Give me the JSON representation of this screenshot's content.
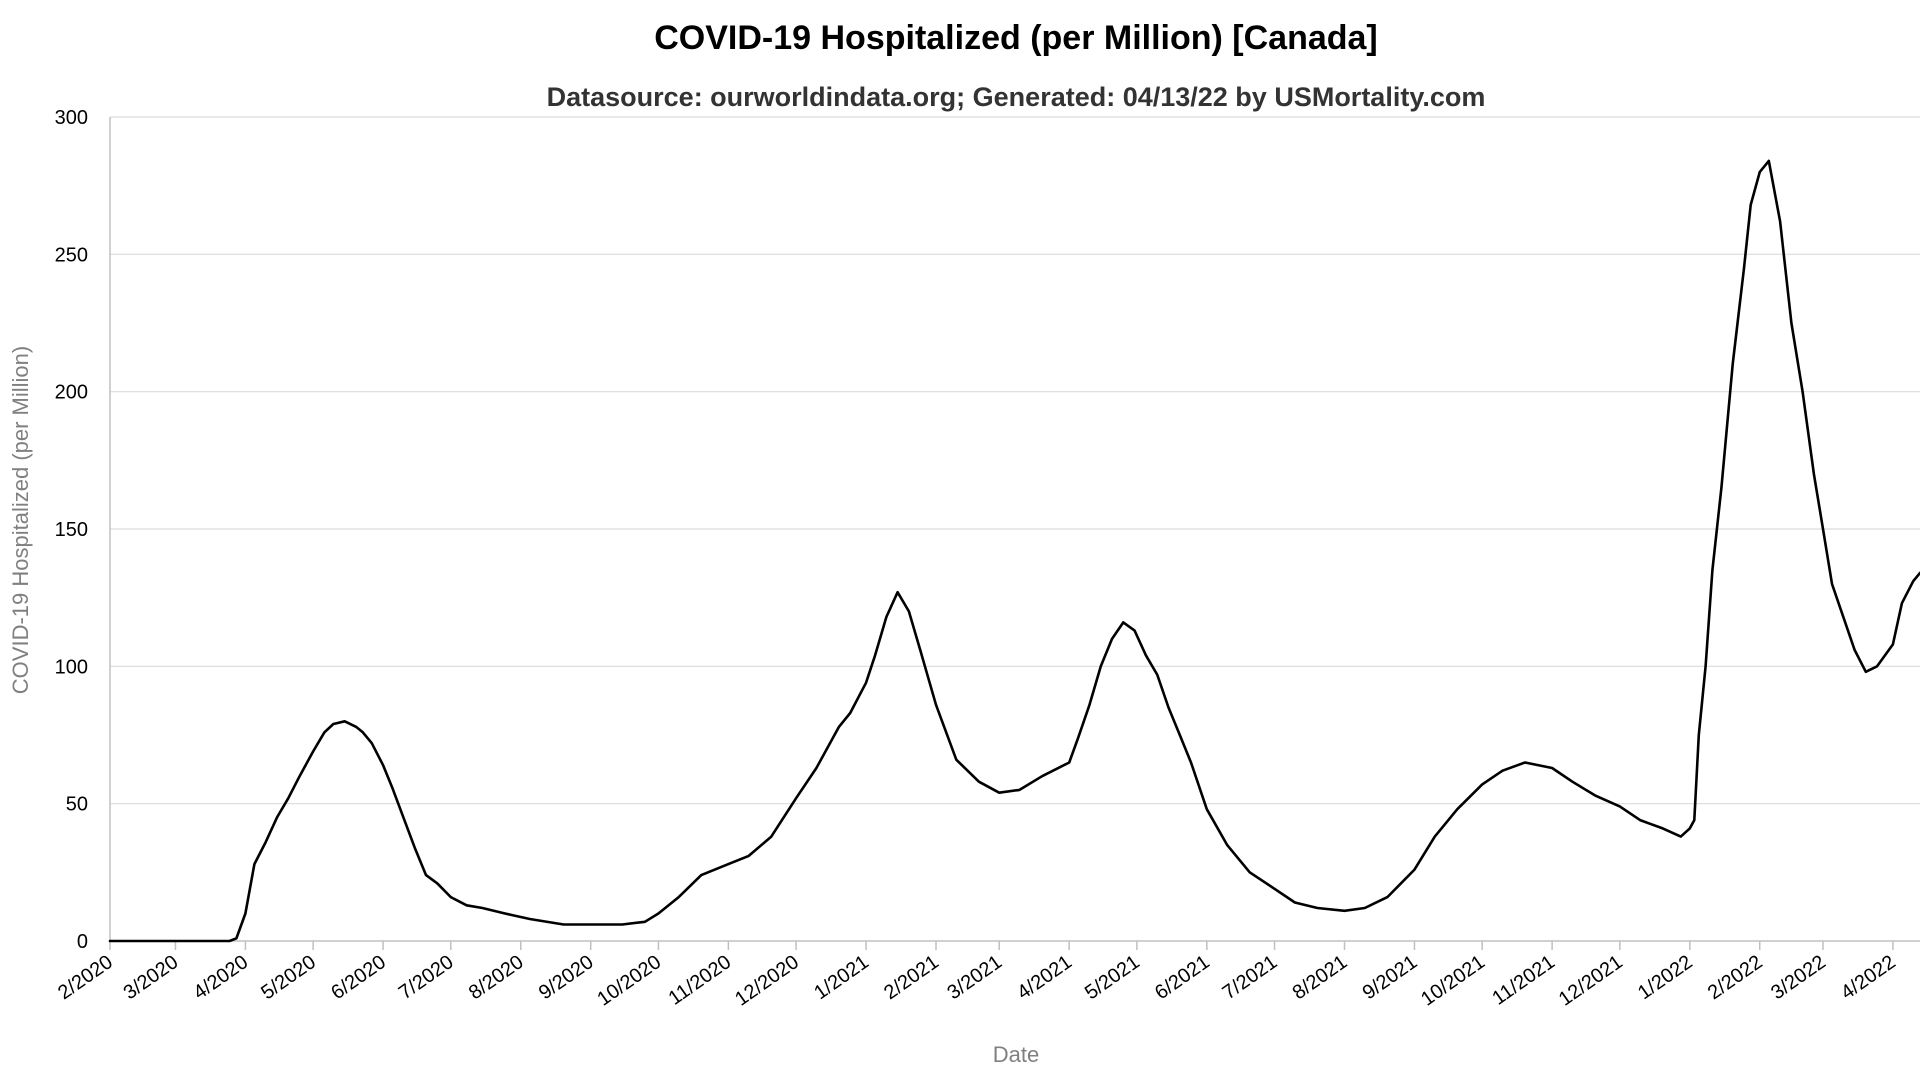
{
  "chart_data": {
    "type": "line",
    "title": "COVID-19 Hospitalized (per Million) [Canada]",
    "subtitle": "Datasource: ourworldindata.org; Generated: 04/13/22 by USMortality.com",
    "xlabel": "Date",
    "ylabel": "COVID-19 Hospitalized (per Million)",
    "ylim": [
      0,
      300
    ],
    "xlim": [
      "2020-02-01",
      "2022-04-13"
    ],
    "y_ticks": [
      0,
      50,
      100,
      150,
      200,
      250,
      300
    ],
    "x_ticks": [
      {
        "date": "2020-02-01",
        "label": "2/2020"
      },
      {
        "date": "2020-03-01",
        "label": "3/2020"
      },
      {
        "date": "2020-04-01",
        "label": "4/2020"
      },
      {
        "date": "2020-05-01",
        "label": "5/2020"
      },
      {
        "date": "2020-06-01",
        "label": "6/2020"
      },
      {
        "date": "2020-07-01",
        "label": "7/2020"
      },
      {
        "date": "2020-08-01",
        "label": "8/2020"
      },
      {
        "date": "2020-09-01",
        "label": "9/2020"
      },
      {
        "date": "2020-10-01",
        "label": "10/2020"
      },
      {
        "date": "2020-11-01",
        "label": "11/2020"
      },
      {
        "date": "2020-12-01",
        "label": "12/2020"
      },
      {
        "date": "2021-01-01",
        "label": "1/2021"
      },
      {
        "date": "2021-02-01",
        "label": "2/2021"
      },
      {
        "date": "2021-03-01",
        "label": "3/2021"
      },
      {
        "date": "2021-04-01",
        "label": "4/2021"
      },
      {
        "date": "2021-05-01",
        "label": "5/2021"
      },
      {
        "date": "2021-06-01",
        "label": "6/2021"
      },
      {
        "date": "2021-07-01",
        "label": "7/2021"
      },
      {
        "date": "2021-08-01",
        "label": "8/2021"
      },
      {
        "date": "2021-09-01",
        "label": "9/2021"
      },
      {
        "date": "2021-10-01",
        "label": "10/2021"
      },
      {
        "date": "2021-11-01",
        "label": "11/2021"
      },
      {
        "date": "2021-12-01",
        "label": "12/2021"
      },
      {
        "date": "2022-01-01",
        "label": "1/2022"
      },
      {
        "date": "2022-02-01",
        "label": "2/2022"
      },
      {
        "date": "2022-03-01",
        "label": "3/2022"
      },
      {
        "date": "2022-04-01",
        "label": "4/2022"
      }
    ],
    "grid": true,
    "legend": "none",
    "line_color": "#000000",
    "series": [
      {
        "x": [
          "2020-02-01",
          "2020-03-01",
          "2020-03-25",
          "2020-03-28",
          "2020-04-01",
          "2020-04-05",
          "2020-04-10",
          "2020-04-15",
          "2020-04-20",
          "2020-04-25",
          "2020-05-01",
          "2020-05-06",
          "2020-05-10",
          "2020-05-15",
          "2020-05-20",
          "2020-05-23",
          "2020-05-27",
          "2020-06-01",
          "2020-06-05",
          "2020-06-10",
          "2020-06-15",
          "2020-06-20",
          "2020-06-25",
          "2020-07-01",
          "2020-07-08",
          "2020-07-15",
          "2020-07-25",
          "2020-08-05",
          "2020-08-20",
          "2020-09-01",
          "2020-09-15",
          "2020-09-25",
          "2020-10-01",
          "2020-10-10",
          "2020-10-20",
          "2020-11-01",
          "2020-11-10",
          "2020-11-20",
          "2020-12-01",
          "2020-12-10",
          "2020-12-20",
          "2020-12-25",
          "2021-01-01",
          "2021-01-05",
          "2021-01-10",
          "2021-01-15",
          "2021-01-20",
          "2021-01-25",
          "2021-02-01",
          "2021-02-10",
          "2021-02-20",
          "2021-03-01",
          "2021-03-10",
          "2021-03-20",
          "2021-04-01",
          "2021-04-05",
          "2021-04-10",
          "2021-04-15",
          "2021-04-20",
          "2021-04-25",
          "2021-04-30",
          "2021-05-05",
          "2021-05-10",
          "2021-05-15",
          "2021-05-20",
          "2021-05-25",
          "2021-06-01",
          "2021-06-10",
          "2021-06-20",
          "2021-07-01",
          "2021-07-10",
          "2021-07-20",
          "2021-08-01",
          "2021-08-10",
          "2021-08-20",
          "2021-09-01",
          "2021-09-10",
          "2021-09-20",
          "2021-10-01",
          "2021-10-10",
          "2021-10-20",
          "2021-11-01",
          "2021-11-10",
          "2021-11-20",
          "2021-12-01",
          "2021-12-10",
          "2021-12-20",
          "2021-12-28",
          "2022-01-01",
          "2022-01-03",
          "2022-01-05",
          "2022-01-08",
          "2022-01-11",
          "2022-01-15",
          "2022-01-20",
          "2022-01-25",
          "2022-01-28",
          "2022-02-01",
          "2022-02-05",
          "2022-02-10",
          "2022-02-15",
          "2022-02-20",
          "2022-02-25",
          "2022-03-01",
          "2022-03-05",
          "2022-03-10",
          "2022-03-15",
          "2022-03-20",
          "2022-03-25",
          "2022-04-01",
          "2022-04-05",
          "2022-04-10",
          "2022-04-13"
        ],
        "y": [
          0,
          0,
          0,
          1,
          10,
          28,
          36,
          45,
          52,
          60,
          69,
          76,
          79,
          80,
          78,
          76,
          72,
          64,
          56,
          45,
          34,
          24,
          21,
          16,
          13,
          12,
          10,
          8,
          6,
          6,
          6,
          7,
          10,
          16,
          24,
          28,
          31,
          38,
          52,
          63,
          78,
          83,
          94,
          104,
          118,
          127,
          120,
          106,
          86,
          66,
          58,
          54,
          55,
          60,
          65,
          74,
          86,
          100,
          110,
          116,
          113,
          104,
          97,
          85,
          75,
          65,
          48,
          35,
          25,
          19,
          14,
          12,
          11,
          12,
          16,
          26,
          38,
          48,
          57,
          62,
          65,
          63,
          58,
          53,
          49,
          44,
          41,
          38,
          41,
          44,
          75,
          100,
          135,
          165,
          210,
          245,
          268,
          280,
          284,
          262,
          225,
          200,
          170,
          150,
          130,
          118,
          106,
          98,
          100,
          108,
          123,
          131,
          134
        ]
      }
    ]
  }
}
